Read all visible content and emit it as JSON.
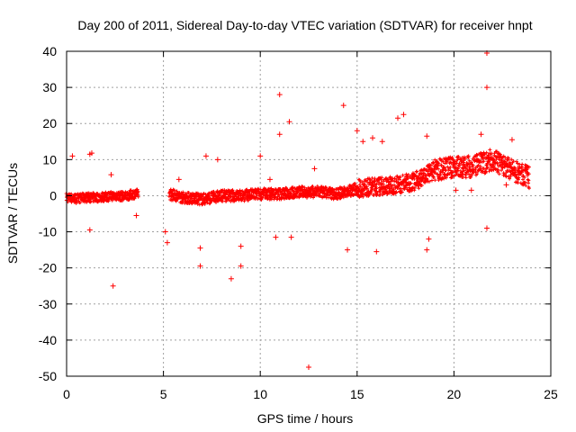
{
  "chart_data": {
    "type": "scatter",
    "title": "Day 200 of 2011, Sidereal Day-to-day VTEC variation (SDTVAR) for receiver hnpt",
    "xlabel": "GPS time / hours",
    "ylabel": "SDTVAR / TECUs",
    "xlim": [
      0,
      25
    ],
    "ylim": [
      -50,
      40
    ],
    "xticks": [
      0,
      5,
      10,
      15,
      20,
      25
    ],
    "yticks": [
      -50,
      -40,
      -30,
      -20,
      -10,
      0,
      10,
      20,
      30,
      40
    ],
    "grid": true,
    "marker": "+",
    "color": "#ff0000",
    "dense_trend": [
      {
        "x": 0.0,
        "y": -0.5
      },
      {
        "x": 0.5,
        "y": -0.8
      },
      {
        "x": 1.0,
        "y": -0.5
      },
      {
        "x": 1.5,
        "y": -0.5
      },
      {
        "x": 2.0,
        "y": -0.3
      },
      {
        "x": 2.5,
        "y": 0.0
      },
      {
        "x": 3.0,
        "y": -0.2
      },
      {
        "x": 3.5,
        "y": 0.5
      },
      {
        "x": 5.3,
        "y": 0.5
      },
      {
        "x": 6.0,
        "y": -0.5
      },
      {
        "x": 7.0,
        "y": -1.0
      },
      {
        "x": 8.0,
        "y": 0.0
      },
      {
        "x": 9.0,
        "y": 0.0
      },
      {
        "x": 10.0,
        "y": 0.5
      },
      {
        "x": 11.0,
        "y": 0.5
      },
      {
        "x": 12.0,
        "y": 1.0
      },
      {
        "x": 13.0,
        "y": 1.0
      },
      {
        "x": 14.0,
        "y": 0.5
      },
      {
        "x": 15.0,
        "y": 2.0
      },
      {
        "x": 16.0,
        "y": 2.5
      },
      {
        "x": 17.0,
        "y": 3.0
      },
      {
        "x": 18.0,
        "y": 4.0
      },
      {
        "x": 19.0,
        "y": 7.0
      },
      {
        "x": 20.0,
        "y": 8.0
      },
      {
        "x": 21.0,
        "y": 8.0
      },
      {
        "x": 22.0,
        "y": 10.0
      },
      {
        "x": 23.0,
        "y": 7.0
      },
      {
        "x": 23.9,
        "y": 5.0
      }
    ],
    "outliers": [
      {
        "x": 0.3,
        "y": 11
      },
      {
        "x": 1.2,
        "y": 11.5
      },
      {
        "x": 1.3,
        "y": 11.8
      },
      {
        "x": 1.2,
        "y": -9.5
      },
      {
        "x": 2.3,
        "y": 5.8
      },
      {
        "x": 2.4,
        "y": -25
      },
      {
        "x": 3.6,
        "y": -5.5
      },
      {
        "x": 5.1,
        "y": -10
      },
      {
        "x": 5.2,
        "y": -13
      },
      {
        "x": 5.8,
        "y": 4.5
      },
      {
        "x": 6.9,
        "y": -14.5
      },
      {
        "x": 6.9,
        "y": -19.5
      },
      {
        "x": 7.2,
        "y": 11
      },
      {
        "x": 7.8,
        "y": 10
      },
      {
        "x": 8.5,
        "y": -23
      },
      {
        "x": 9.0,
        "y": -14
      },
      {
        "x": 9.0,
        "y": -19.5
      },
      {
        "x": 10.0,
        "y": 11
      },
      {
        "x": 10.5,
        "y": 4.5
      },
      {
        "x": 11.0,
        "y": 28
      },
      {
        "x": 11.0,
        "y": 17
      },
      {
        "x": 11.5,
        "y": 20.5
      },
      {
        "x": 10.8,
        "y": -11.5
      },
      {
        "x": 11.6,
        "y": -11.5
      },
      {
        "x": 12.5,
        "y": -47.5
      },
      {
        "x": 12.8,
        "y": 7.5
      },
      {
        "x": 14.3,
        "y": 25
      },
      {
        "x": 14.5,
        "y": -15
      },
      {
        "x": 15.0,
        "y": 18
      },
      {
        "x": 15.3,
        "y": 15
      },
      {
        "x": 15.8,
        "y": 16
      },
      {
        "x": 16.0,
        "y": -15.5
      },
      {
        "x": 16.3,
        "y": 15
      },
      {
        "x": 17.1,
        "y": 21.5
      },
      {
        "x": 17.4,
        "y": 22.5
      },
      {
        "x": 18.6,
        "y": 16.5
      },
      {
        "x": 18.6,
        "y": -15
      },
      {
        "x": 18.7,
        "y": -12
      },
      {
        "x": 20.1,
        "y": 1.5
      },
      {
        "x": 20.9,
        "y": 1.5
      },
      {
        "x": 21.4,
        "y": 17
      },
      {
        "x": 21.7,
        "y": 39.5
      },
      {
        "x": 21.7,
        "y": 30
      },
      {
        "x": 21.7,
        "y": -9
      },
      {
        "x": 22.7,
        "y": 3
      },
      {
        "x": 23.0,
        "y": 15.5
      }
    ]
  }
}
